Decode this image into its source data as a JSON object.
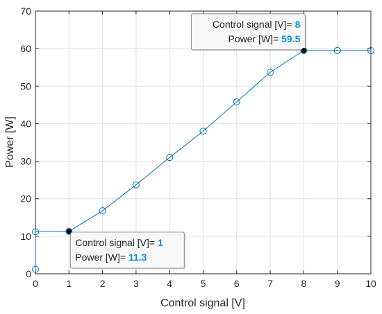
{
  "chart_data": {
    "type": "line",
    "xlabel": "Control signal [V]",
    "ylabel": "Power [W]",
    "xlim": [
      0,
      10
    ],
    "ylim": [
      0,
      70
    ],
    "xticks": [
      0,
      1,
      2,
      3,
      4,
      5,
      6,
      7,
      8,
      9,
      10
    ],
    "yticks": [
      0,
      10,
      20,
      30,
      40,
      50,
      60,
      70
    ],
    "grid": true,
    "series": [
      {
        "x": [
          0,
          0,
          1,
          2,
          3,
          4,
          5,
          6,
          7,
          8,
          9,
          10
        ],
        "y": [
          1.2,
          11.2,
          11.3,
          16.8,
          23.7,
          31.0,
          38.0,
          45.8,
          53.7,
          59.5,
          59.5,
          59.5
        ],
        "color": "#0072BD",
        "marker": "circle"
      }
    ],
    "datatips": [
      {
        "x": 1,
        "y": 11.3,
        "x_label": "Control signal [V]=",
        "x_value": "1",
        "y_label": "Power [W]=",
        "y_value": "11.3",
        "placement": "bottom-right"
      },
      {
        "x": 8,
        "y": 59.5,
        "x_label": "Control signal [V]=",
        "x_value": "8",
        "y_label": "Power [W]=",
        "y_value": "59.5",
        "placement": "top-left"
      }
    ],
    "datatip_value_color": "#0E8DDB"
  }
}
